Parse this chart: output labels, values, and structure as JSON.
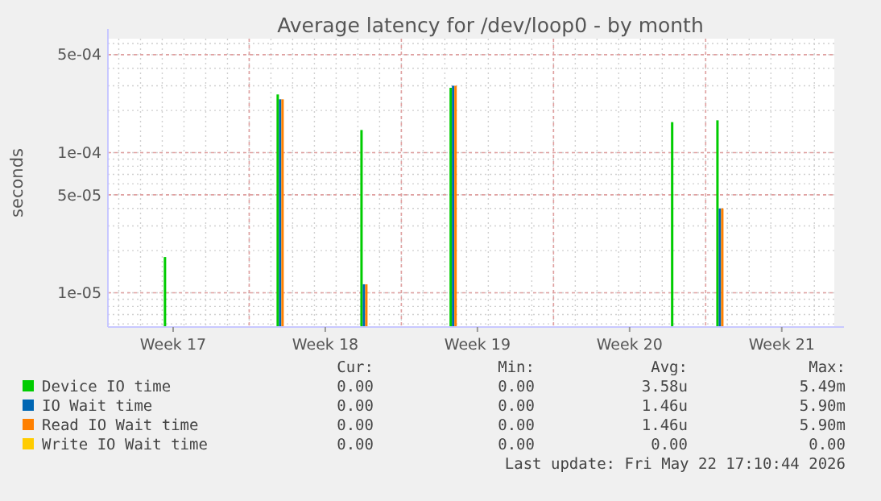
{
  "chart_data": {
    "type": "bar",
    "title": "Average latency for /dev/loop0 - by month",
    "ylabel": "seconds",
    "log": "y",
    "xlim": [
      "2026-04-20T12:00",
      "2026-05-23T22:00"
    ],
    "xticks": [
      {
        "value": "2026-04-23T12:00",
        "label": "Week 17"
      },
      {
        "value": "2026-04-27T00:00",
        "label": null
      },
      {
        "value": "2026-04-30T12:00",
        "label": "Week 18"
      },
      {
        "value": "2026-05-04T00:00",
        "label": null
      },
      {
        "value": "2026-05-07T12:00",
        "label": "Week 19"
      },
      {
        "value": "2026-05-11T00:00",
        "label": null
      },
      {
        "value": "2026-05-14T12:00",
        "label": "Week 20"
      },
      {
        "value": "2026-05-18T00:00",
        "label": null
      },
      {
        "value": "2026-05-21T12:00",
        "label": "Week 21"
      }
    ],
    "ylim": [
      5.7e-06,
      0.00065
    ],
    "yticks": [
      {
        "value": 1e-05,
        "label": "1e-05"
      },
      {
        "value": 5e-05,
        "label": "5e-05"
      },
      {
        "value": 0.0001,
        "label": "1e-04"
      },
      {
        "value": 0.0005,
        "label": "5e-04"
      }
    ],
    "grid": true,
    "legend": "bottom",
    "series": [
      {
        "name": "Device IO time",
        "color": "#00cc00",
        "x": [
          "2026-04-23T07:00",
          "2026-04-28T11:30",
          "2026-05-02T08:00",
          "2026-05-06T10:30",
          "2026-05-16T15:00",
          "2026-05-18T17:00"
        ],
        "values": [
          1.8e-05,
          0.00026,
          0.000145,
          0.00029,
          0.000165,
          0.00017
        ]
      },
      {
        "name": "IO Wait time",
        "color": "#0066b3",
        "x": [
          "2026-04-28T11:30",
          "2026-05-02T08:00",
          "2026-05-06T10:30",
          "2026-05-18T17:00"
        ],
        "values": [
          0.00024,
          1.15e-05,
          0.0003,
          4e-05
        ]
      },
      {
        "name": "Read IO Wait time",
        "color": "#ff8000",
        "x": [
          "2026-04-28T11:30",
          "2026-05-02T08:00",
          "2026-05-06T10:30",
          "2026-05-18T17:00"
        ],
        "values": [
          0.00024,
          1.15e-05,
          0.0003,
          4e-05
        ]
      },
      {
        "name": "Write IO Wait time",
        "color": "#ffcc00"
      }
    ],
    "annotations": [
      "Cur:",
      "Min:",
      "Avg:",
      "Max:",
      "0.00",
      "0.00",
      "3.58u",
      "5.49m",
      "0.00",
      "0.00",
      "1.46u",
      "5.90m",
      "0.00",
      "0.00",
      "1.46u",
      "5.90m",
      "0.00",
      "0.00",
      "0.00",
      "0.00",
      "Last update: Fri May 22 17:10:44 2026"
    ]
  }
}
